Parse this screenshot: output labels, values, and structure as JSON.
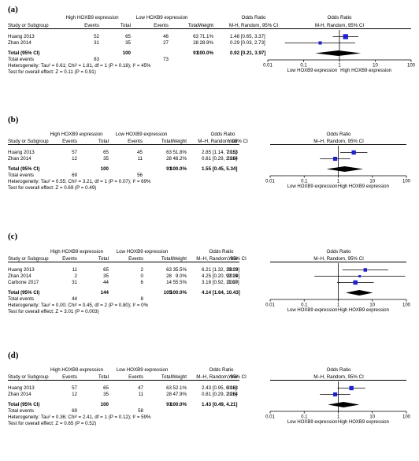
{
  "chart_data": [
    {
      "type": "forest",
      "panel_label": "(a)",
      "has_year": false,
      "group_headers": [
        "High HOXB9 expression",
        "Low HOXB9 expression"
      ],
      "col_headers": {
        "study": "Study or Subgroup",
        "events": "Events",
        "total": "Total",
        "events2": "Events",
        "total2": "Total",
        "weight": "Weight",
        "or_group": "Odds Ratio",
        "or_method": "M-H, Random, 95% CI",
        "year": ""
      },
      "plot_headers": {
        "title": "Odds Ratio",
        "method": "M-H, Random, 95% CI"
      },
      "studies": [
        {
          "name": "Huang 2013",
          "events1": "52",
          "total1": "65",
          "events2": "46",
          "total2": "63",
          "weight": "71.1%",
          "ci_text": "1.48 [0.65, 3.37]",
          "year": "",
          "or": 1.48,
          "lo": 0.65,
          "hi": 3.37
        },
        {
          "name": "Zhan 2014",
          "events1": "31",
          "total1": "35",
          "events2": "27",
          "total2": "28",
          "weight": "28.9%",
          "ci_text": "0.29 [0.03, 2.73]",
          "year": "",
          "or": 0.29,
          "lo": 0.03,
          "hi": 2.73
        }
      ],
      "total": {
        "label": "Total (95% CI)",
        "total1": "100",
        "total2": "91",
        "weight": "100.0%",
        "ci_text": "0.92 [0.21, 3.97]",
        "or": 0.92,
        "lo": 0.21,
        "hi": 3.97
      },
      "total_events": {
        "label": "Total events",
        "events1": "83",
        "events2": "73"
      },
      "heterogeneity": "Heterogeneity: Tau² = 0.61; Chi² = 1.81, df = 1 (P = 0.18); I² = 45%",
      "overall_effect": "Test for overall effect: Z = 0.11 (P = 0.91)",
      "axis": {
        "ticks": [
          0.01,
          0.1,
          1,
          10,
          100
        ],
        "tick_labels": [
          "0.01",
          "0.1",
          "1",
          "10",
          "100"
        ],
        "xlim": [
          0.01,
          100
        ],
        "scale": "log",
        "left_label": "Low HOXB9 expression",
        "right_label": "High HOXB9 expression"
      }
    },
    {
      "type": "forest",
      "panel_label": "(b)",
      "has_year": true,
      "group_headers": [
        "High HOXB9 expression",
        "Low HOXB9 expression"
      ],
      "col_headers": {
        "study": "Study or Subgroup",
        "events": "Events",
        "total": "Total",
        "events2": "Events",
        "total2": "Total",
        "weight": "Weight",
        "or_group": "Odds Ratio",
        "or_method": "M–H, Random, 95% CI",
        "year": "Year"
      },
      "plot_headers": {
        "title": "Odds Ratio",
        "method": "M–H, Random, 95% CI"
      },
      "studies": [
        {
          "name": "Huang 2013",
          "events1": "57",
          "total1": "65",
          "events2": "45",
          "total2": "63",
          "weight": "51.8%",
          "ci_text": "2.85 [1.14, 7.15]",
          "year": "2013",
          "or": 2.85,
          "lo": 1.14,
          "hi": 7.15
        },
        {
          "name": "Zhan 2014",
          "events1": "12",
          "total1": "35",
          "events2": "11",
          "total2": "28",
          "weight": "48.2%",
          "ci_text": "0.81 [0.29, 2.26]",
          "year": "2014",
          "or": 0.81,
          "lo": 0.29,
          "hi": 2.26
        }
      ],
      "total": {
        "label": "Total (95% CI)",
        "total1": "100",
        "total2": "91",
        "weight": "100.0%",
        "ci_text": "1.55 [0.45, 5.34]",
        "or": 1.55,
        "lo": 0.45,
        "hi": 5.34
      },
      "total_events": {
        "label": "Total events",
        "events1": "69",
        "events2": "56"
      },
      "heterogeneity": "Heterogeneity: Tau² = 0.55; Chi² = 3.21, df = 1 (P = 0.07); I² = 69%",
      "overall_effect": "Test for overall effect: Z = 0.69 (P = 0.49)",
      "axis": {
        "ticks": [
          0.01,
          0.1,
          1,
          10,
          100
        ],
        "tick_labels": [
          "0.01",
          "0.1",
          "1",
          "10",
          "100"
        ],
        "xlim": [
          0.01,
          100
        ],
        "scale": "log",
        "left_label": "Low HOXB9 expression",
        "right_label": "High HOXB9 expression"
      }
    },
    {
      "type": "forest",
      "panel_label": "(c)",
      "has_year": true,
      "group_headers": [
        "High HOXB9 expression",
        "Low HOXB9 expression"
      ],
      "col_headers": {
        "study": "Study or Subgroup",
        "events": "Events",
        "total": "Total",
        "events2": "Events",
        "total2": "Total",
        "weight": "Weight",
        "or_group": "Odds Ratio",
        "or_method": "M–H, Random, 95% CI",
        "year": "Year"
      },
      "plot_headers": {
        "title": "Odds Ratio",
        "method": "M–H, Random, 95% CI"
      },
      "studies": [
        {
          "name": "Huang 2013",
          "events1": "11",
          "total1": "65",
          "events2": "2",
          "total2": "63",
          "weight": "35.5%",
          "ci_text": "6.21 [1.32, 29.29]",
          "year": "2013",
          "or": 6.21,
          "lo": 1.32,
          "hi": 29.29
        },
        {
          "name": "Zhan 2014",
          "events1": "2",
          "total1": "35",
          "events2": "0",
          "total2": "28",
          "weight": "9.0%",
          "ci_text": "4.25 [0.20, 92.29]",
          "year": "2014",
          "or": 4.25,
          "lo": 0.2,
          "hi": 92.29
        },
        {
          "name": "Carbone 2017",
          "events1": "31",
          "total1": "44",
          "events2": "6",
          "total2": "14",
          "weight": "55.5%",
          "ci_text": "3.18 [0.92, 11.00]",
          "year": "2017",
          "or": 3.18,
          "lo": 0.92,
          "hi": 11.0
        }
      ],
      "total": {
        "label": "Total (95% CI)",
        "total1": "144",
        "total2": "105",
        "weight": "100.0%",
        "ci_text": "4.14 [1.64, 10.43]",
        "or": 4.14,
        "lo": 1.64,
        "hi": 10.43
      },
      "total_events": {
        "label": "Total events",
        "events1": "44",
        "events2": "8"
      },
      "heterogeneity": "Heterogeneity: Tau² = 0.00; Chi² = 0.45, df = 2 (P = 0.80); I² = 0%",
      "overall_effect": "Test for overall effect: Z = 3.01 (P = 0.003)",
      "axis": {
        "ticks": [
          0.01,
          0.1,
          1,
          10,
          100
        ],
        "tick_labels": [
          "0.01",
          "0.1",
          "1",
          "10",
          "100"
        ],
        "xlim": [
          0.01,
          100
        ],
        "scale": "log",
        "left_label": "Low HOXB9 expression",
        "right_label": "High HOXB9 expression"
      }
    },
    {
      "type": "forest",
      "panel_label": "(d)",
      "has_year": true,
      "group_headers": [
        "High HOXB9 expression",
        "Low HOXB9 expression"
      ],
      "col_headers": {
        "study": "Study or Subgroup",
        "events": "Events",
        "total": "Total",
        "events2": "Events",
        "total2": "Total",
        "weight": "Weight",
        "or_group": "Odds Ratio",
        "or_method": "M–H, Random, 95% CI",
        "year": "Year"
      },
      "plot_headers": {
        "title": "Odds Ratio",
        "method": "M–H, Random, 95% CI"
      },
      "studies": [
        {
          "name": "Huang 2013",
          "events1": "57",
          "total1": "65",
          "events2": "47",
          "total2": "63",
          "weight": "52.1%",
          "ci_text": "2.43 [0.95, 6.16]",
          "year": "2013",
          "or": 2.43,
          "lo": 0.95,
          "hi": 6.16
        },
        {
          "name": "Zhan 2014",
          "events1": "12",
          "total1": "35",
          "events2": "11",
          "total2": "28",
          "weight": "47.9%",
          "ci_text": "0.81 [0.29, 2.26]",
          "year": "2014",
          "or": 0.81,
          "lo": 0.29,
          "hi": 2.26
        }
      ],
      "total": {
        "label": "Total (95% CI)",
        "total1": "100",
        "total2": "91",
        "weight": "100.0%",
        "ci_text": "1.43 [0.49, 4.21]",
        "or": 1.43,
        "lo": 0.49,
        "hi": 4.21
      },
      "total_events": {
        "label": "Total events",
        "events1": "69",
        "events2": "58"
      },
      "heterogeneity": "Heterogeneity: Tau² = 0.36; Chi² = 2.41, df = 1 (P = 0.12); I² = 59%",
      "overall_effect": "Test for overall effect: Z = 0.65 (P = 0.52)",
      "axis": {
        "ticks": [
          0.01,
          0.1,
          1,
          10,
          100
        ],
        "tick_labels": [
          "0.01",
          "0.1",
          "1",
          "10",
          "100"
        ],
        "xlim": [
          0.01,
          100
        ],
        "scale": "log",
        "left_label": "Low HOXB9 expression",
        "right_label": "High HOXB9 expression"
      }
    }
  ],
  "colors": {
    "study_marker": "#2222cc",
    "summary_diamond": "#000000",
    "line": "#000000"
  }
}
